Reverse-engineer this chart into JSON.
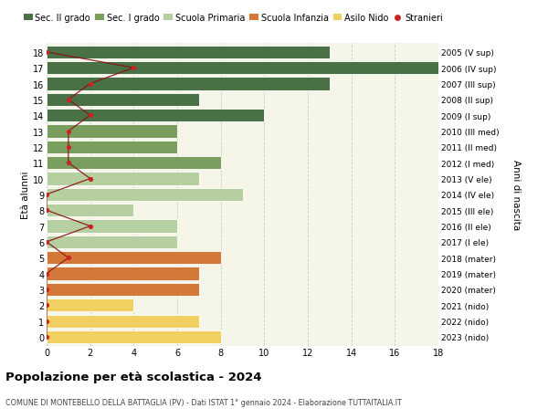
{
  "ages": [
    18,
    17,
    16,
    15,
    14,
    13,
    12,
    11,
    10,
    9,
    8,
    7,
    6,
    5,
    4,
    3,
    2,
    1,
    0
  ],
  "right_labels": [
    "2005 (V sup)",
    "2006 (IV sup)",
    "2007 (III sup)",
    "2008 (II sup)",
    "2009 (I sup)",
    "2010 (III med)",
    "2011 (II med)",
    "2012 (I med)",
    "2013 (V ele)",
    "2014 (IV ele)",
    "2015 (III ele)",
    "2016 (II ele)",
    "2017 (I ele)",
    "2018 (mater)",
    "2019 (mater)",
    "2020 (mater)",
    "2021 (nido)",
    "2022 (nido)",
    "2023 (nido)"
  ],
  "bar_values": [
    13,
    18,
    13,
    7,
    10,
    6,
    6,
    8,
    7,
    9,
    4,
    6,
    6,
    8,
    7,
    7,
    4,
    7,
    8
  ],
  "bar_colors": [
    "#4a7045",
    "#4a7045",
    "#4a7045",
    "#4a7045",
    "#4a7045",
    "#7a9e5e",
    "#7a9e5e",
    "#7a9e5e",
    "#b5cfa0",
    "#b5cfa0",
    "#b5cfa0",
    "#b5cfa0",
    "#b5cfa0",
    "#d4783a",
    "#d4783a",
    "#d4783a",
    "#f0d060",
    "#f0d060",
    "#f0d060"
  ],
  "stranieri_x": [
    0,
    4,
    2,
    1,
    2,
    1,
    1,
    1,
    2,
    0,
    0,
    2,
    0,
    1,
    0,
    0,
    0,
    0,
    0
  ],
  "legend_labels": [
    "Sec. II grado",
    "Sec. I grado",
    "Scuola Primaria",
    "Scuola Infanzia",
    "Asilo Nido",
    "Stranieri"
  ],
  "legend_colors": [
    "#4a7045",
    "#7a9e5e",
    "#b5cfa0",
    "#d4783a",
    "#f0d060",
    "#cc2222"
  ],
  "title": "Popolazione per età scolastica - 2024",
  "subtitle": "COMUNE DI MONTEBELLO DELLA BATTAGLIA (PV) - Dati ISTAT 1° gennaio 2024 - Elaborazione TUTTAITALIA.IT",
  "ylabel_left": "Età alunni",
  "ylabel_right": "Anni di nascita",
  "xlim": [
    0,
    18
  ],
  "background_color": "#ffffff",
  "plot_bg_color": "#f5f5e8",
  "grid_color": "#cccccc",
  "bar_height": 0.82
}
